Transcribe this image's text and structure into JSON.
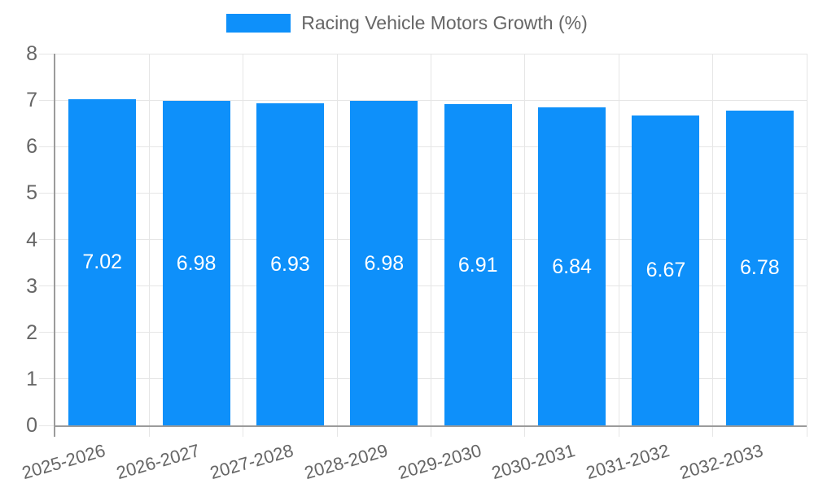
{
  "chart_data": {
    "type": "bar",
    "title": "Racing Vehicle Motors Growth (%)",
    "categories": [
      "2025-2026",
      "2026-2027",
      "2027-2028",
      "2028-2029",
      "2029-2030",
      "2030-2031",
      "2031-2032",
      "2032-2033"
    ],
    "values": [
      7.02,
      6.98,
      6.93,
      6.98,
      6.91,
      6.84,
      6.67,
      6.78
    ],
    "value_labels": [
      "7.02",
      "6.98",
      "6.93",
      "6.98",
      "6.91",
      "6.84",
      "6.67",
      "6.78"
    ],
    "xlabel": "",
    "ylabel": "",
    "ylim": [
      0,
      8
    ],
    "y_ticks": [
      0,
      1,
      2,
      3,
      4,
      5,
      6,
      7,
      8
    ],
    "grid": true,
    "legend_position": "top",
    "colors": {
      "bar": "#0E90FA",
      "value_label": "#FFFFFF",
      "tick_label": "#666666",
      "legend_label": "#666666",
      "grid_line": "#E6E6E6",
      "axis_line": "#9B9B9B"
    }
  }
}
